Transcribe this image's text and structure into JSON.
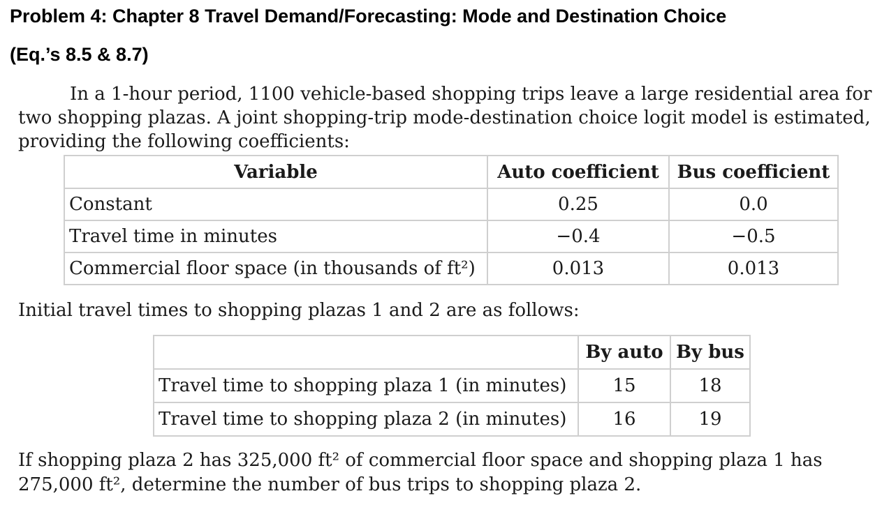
{
  "header": {
    "title_line1": "Problem 4: Chapter 8 Travel Demand/Forecasting: Mode and Destination Choice",
    "title_line2": "(Eq.’s 8.5 & 8.7)"
  },
  "intro_paragraph": "In a 1-hour period, 1100 vehicle-based shopping trips leave a large residential area for two shopping plazas. A joint shopping-trip mode-destination choice logit model is estimated, providing the following coefficients:",
  "coefficients_table": {
    "headers": [
      "Variable",
      "Auto coefficient",
      "Bus coefficient"
    ],
    "rows": [
      {
        "variable": "Constant",
        "auto": "0.25",
        "bus": "0.0"
      },
      {
        "variable": "Travel time in minutes",
        "auto": "−0.4",
        "bus": "−0.5"
      },
      {
        "variable": "Commercial floor space (in thousands of ft²)",
        "auto": "0.013",
        "bus": "0.013"
      }
    ]
  },
  "initial_times_paragraph": "Initial travel times to shopping plazas 1 and 2 are as follows:",
  "travel_times_table": {
    "headers": [
      "",
      "By auto",
      "By bus"
    ],
    "rows": [
      {
        "label": "Travel time to shopping plaza 1 (in minutes)",
        "auto": "15",
        "bus": "18"
      },
      {
        "label": "Travel time to shopping plaza 2 (in minutes)",
        "auto": "16",
        "bus": "19"
      }
    ]
  },
  "question_paragraph": "If shopping plaza 2 has 325,000 ft² of commercial floor space and shopping plaza 1 has 275,000 ft², determine the number of bus trips to shopping plaza 2."
}
